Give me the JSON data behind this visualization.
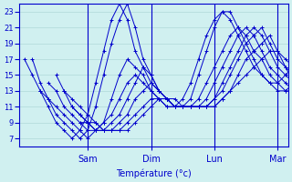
{
  "title": "",
  "xlabel": "Température (°c)",
  "ylabel": "",
  "bg_color": "#d0f0f0",
  "grid_color": "#b0d8d8",
  "line_color": "#0000cc",
  "marker": "+",
  "ymin": 6,
  "ymax": 24,
  "yticks": [
    7,
    9,
    11,
    13,
    15,
    17,
    19,
    21,
    23
  ],
  "day_labels": [
    "Sam",
    "Dim",
    "Lun",
    "Mar"
  ],
  "day_positions": [
    24,
    48,
    72,
    96
  ],
  "series": [
    [
      17,
      15,
      13,
      11,
      9,
      8,
      7,
      8,
      10,
      14,
      18,
      22,
      24,
      22,
      18,
      16,
      14,
      13,
      12,
      11,
      12,
      14,
      17,
      20,
      22,
      23,
      22,
      20,
      18,
      16,
      15,
      14,
      14,
      15,
      16,
      17,
      17,
      16,
      15,
      14,
      14,
      14,
      14,
      14,
      14,
      14,
      14,
      14,
      14
    ],
    [
      17,
      14,
      12,
      10,
      9,
      8,
      7,
      8,
      11,
      15,
      19,
      22,
      24,
      21,
      17,
      15,
      13,
      12,
      11,
      11,
      12,
      15,
      18,
      21,
      23,
      23,
      21,
      19,
      17,
      15,
      14,
      13,
      13,
      14,
      15,
      16,
      16,
      15,
      14,
      13,
      13,
      13,
      14,
      14,
      14,
      14,
      14
    ],
    [
      13,
      12,
      11,
      10,
      9,
      8,
      7,
      8,
      9,
      12,
      15,
      17,
      16,
      15,
      13,
      12,
      11,
      11,
      11,
      11,
      12,
      14,
      16,
      18,
      20,
      21,
      20,
      18,
      17,
      15,
      14,
      13,
      13,
      14,
      15,
      15,
      15,
      14,
      14,
      13,
      13,
      13,
      13,
      14,
      14,
      14,
      14
    ],
    [
      14,
      13,
      11,
      10,
      9,
      8,
      8,
      9,
      10,
      12,
      14,
      15,
      14,
      13,
      12,
      11,
      11,
      11,
      11,
      11,
      12,
      14,
      16,
      18,
      20,
      21,
      20,
      18,
      16,
      15,
      14,
      13,
      13,
      14,
      15,
      15,
      15,
      14,
      14,
      13,
      13,
      13,
      13,
      13,
      14,
      14,
      14
    ],
    [
      15,
      13,
      11,
      10,
      9,
      8,
      8,
      9,
      10,
      12,
      14,
      16,
      15,
      13,
      12,
      11,
      11,
      11,
      11,
      11,
      12,
      14,
      16,
      18,
      20,
      21,
      20,
      18,
      16,
      15,
      14,
      13,
      13,
      14,
      15,
      15,
      15,
      14,
      13,
      13,
      13,
      13,
      13,
      14,
      14,
      14,
      14
    ],
    [
      13,
      12,
      11,
      10,
      9,
      8,
      8,
      9,
      10,
      12,
      13,
      14,
      13,
      12,
      11,
      11,
      11,
      11,
      11,
      12,
      13,
      15,
      17,
      19,
      20,
      21,
      19,
      17,
      16,
      14,
      13,
      13,
      13,
      14,
      15,
      15,
      15,
      14,
      13,
      13,
      13,
      13,
      13,
      13,
      14,
      14,
      14
    ],
    [
      11,
      10,
      9,
      9,
      8,
      8,
      8,
      9,
      10,
      11,
      12,
      12,
      12,
      11,
      11,
      11,
      11,
      11,
      11,
      12,
      13,
      15,
      17,
      18,
      19,
      20,
      18,
      16,
      15,
      14,
      13,
      13,
      13,
      13,
      14,
      14,
      14,
      13,
      13,
      13,
      13,
      13,
      13,
      13,
      14,
      14,
      14
    ],
    [
      9,
      9,
      8,
      8,
      8,
      8,
      8,
      9,
      10,
      11,
      12,
      12,
      12,
      11,
      11,
      11,
      11,
      11,
      12,
      13,
      14,
      15,
      16,
      17,
      18,
      18,
      17,
      16,
      15,
      14,
      13,
      13,
      13,
      13,
      14,
      14,
      14,
      13,
      13,
      13,
      13,
      13,
      13,
      13,
      14,
      14,
      14
    ]
  ]
}
